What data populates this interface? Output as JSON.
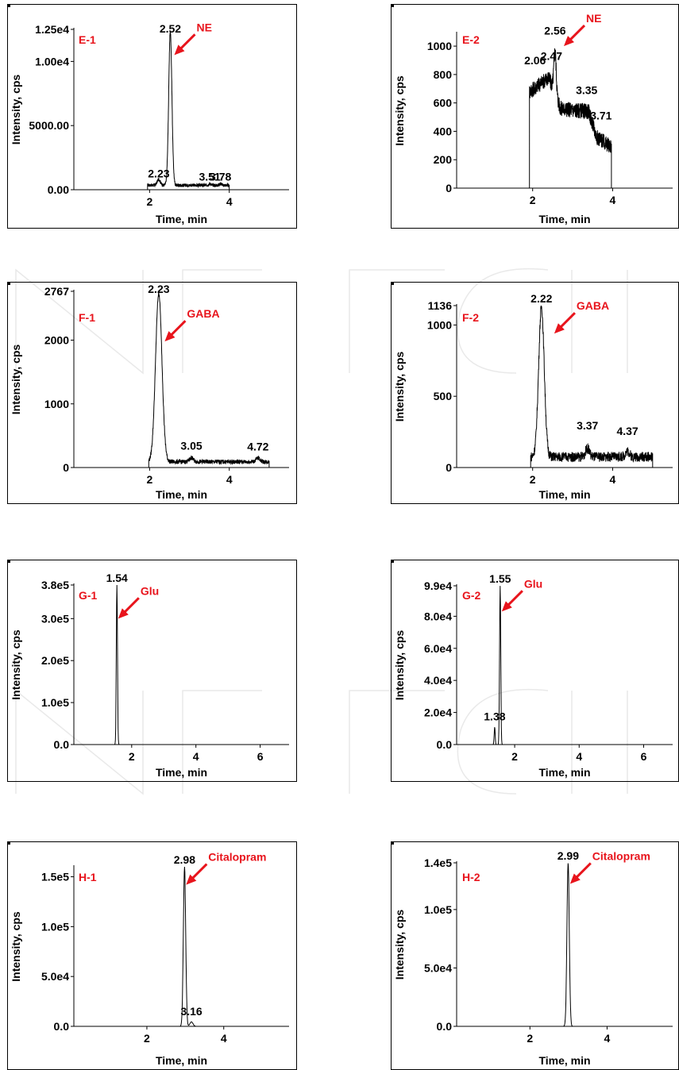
{
  "colors": {
    "trace": "#000000",
    "label": "#e8141c",
    "arrow": "#e8141c",
    "frame": "#000000",
    "watermark": "#e9e9e9"
  },
  "chart_data": [
    {
      "type": "line",
      "id": "E-1",
      "panel_label": "E-1",
      "compound": "NE",
      "xlabel": "Time, min",
      "ylabel": "Intensity, cps",
      "xlim": [
        0.1,
        5.5
      ],
      "ylim": [
        0,
        12500
      ],
      "xticks": [
        {
          "v": 2,
          "label": "2"
        },
        {
          "v": 4,
          "label": "4"
        }
      ],
      "yticks": [
        {
          "v": 0,
          "label": "0.00"
        },
        {
          "v": 5000,
          "label": "5000.00"
        },
        {
          "v": 10000,
          "label": "1.00e4"
        },
        {
          "v": 12500,
          "label": "1.25e4"
        }
      ],
      "trace": {
        "start": 1.95,
        "end": 4.0,
        "baseline": 350,
        "noise": 250,
        "peaks": [
          {
            "x": 2.52,
            "h": 12000,
            "w": 0.04
          },
          {
            "x": 2.23,
            "h": 450,
            "w": 0.04
          },
          {
            "x": 3.51,
            "h": 120,
            "w": 0.03
          },
          {
            "x": 3.78,
            "h": 120,
            "w": 0.03
          }
        ]
      },
      "annotations": [
        {
          "x": 2.52,
          "y": 12000,
          "label": "2.52"
        },
        {
          "x": 2.23,
          "y": 700,
          "label": "2.23"
        },
        {
          "x": 3.51,
          "y": 450,
          "label": "3.51"
        },
        {
          "x": 3.78,
          "y": 450,
          "label": "3.78"
        }
      ],
      "arrow_target": {
        "x": 2.62,
        "y": 10500
      }
    },
    {
      "type": "line",
      "id": "E-2",
      "panel_label": "E-2",
      "compound": "NE",
      "xlabel": "Time, min",
      "ylabel": "Intensity, cps",
      "xlim": [
        0.1,
        5.5
      ],
      "ylim": [
        0,
        1090
      ],
      "xticks": [
        {
          "v": 2,
          "label": "2"
        },
        {
          "v": 4,
          "label": "4"
        }
      ],
      "yticks": [
        {
          "v": 0,
          "label": "0"
        },
        {
          "v": 200,
          "label": "200"
        },
        {
          "v": 400,
          "label": "400"
        },
        {
          "v": 600,
          "label": "600"
        },
        {
          "v": 800,
          "label": "800"
        },
        {
          "v": 1000,
          "label": "1000"
        }
      ],
      "trace": {
        "start": 1.92,
        "end": 3.97,
        "noise": 110,
        "base_segments": [
          {
            "x": 1.93,
            "y": 680
          },
          {
            "x": 2.4,
            "y": 780
          },
          {
            "x": 2.7,
            "y": 560
          },
          {
            "x": 3.4,
            "y": 540
          },
          {
            "x": 3.6,
            "y": 360
          },
          {
            "x": 3.9,
            "y": 300
          }
        ],
        "peaks": [
          {
            "x": 2.56,
            "h": 300,
            "w": 0.03
          }
        ]
      },
      "annotations": [
        {
          "x": 2.56,
          "y": 1060,
          "label": "2.56"
        },
        {
          "x": 2.06,
          "y": 850,
          "label": "2.06"
        },
        {
          "x": 2.47,
          "y": 880,
          "label": "2.47"
        },
        {
          "x": 3.35,
          "y": 640,
          "label": "3.35"
        },
        {
          "x": 3.71,
          "y": 460,
          "label": "3.71"
        }
      ],
      "arrow_target": {
        "x": 2.78,
        "y": 1000
      }
    },
    {
      "type": "line",
      "id": "F-1",
      "panel_label": "F-1",
      "compound": "GABA",
      "xlabel": "Time, min",
      "ylabel": "Intensity, cps",
      "xlim": [
        0.1,
        5.5
      ],
      "ylim": [
        0,
        2767
      ],
      "xticks": [
        {
          "v": 2,
          "label": "2"
        },
        {
          "v": 4,
          "label": "4"
        }
      ],
      "yticks": [
        {
          "v": 0,
          "label": "0"
        },
        {
          "v": 1000,
          "label": "1000"
        },
        {
          "v": 2000,
          "label": "2000"
        },
        {
          "v": 2767,
          "label": "2767"
        }
      ],
      "trace": {
        "start": 1.98,
        "end": 5.0,
        "baseline": 90,
        "noise": 70,
        "peaks": [
          {
            "x": 2.23,
            "h": 2650,
            "w": 0.08
          },
          {
            "x": 3.05,
            "h": 60,
            "w": 0.05
          },
          {
            "x": 4.72,
            "h": 60,
            "w": 0.05
          }
        ]
      },
      "annotations": [
        {
          "x": 2.23,
          "y": 2767,
          "label": "2.23"
        },
        {
          "x": 3.05,
          "y": 230,
          "label": "3.05"
        },
        {
          "x": 4.72,
          "y": 220,
          "label": "4.72"
        }
      ],
      "arrow_target": {
        "x": 2.38,
        "y": 1980
      }
    },
    {
      "type": "line",
      "id": "F-2",
      "panel_label": "F-2",
      "compound": "GABA",
      "xlabel": "Time, min",
      "ylabel": "Intensity, cps",
      "xlim": [
        0.1,
        5.5
      ],
      "ylim": [
        0,
        1136
      ],
      "xticks": [
        {
          "v": 2,
          "label": "2"
        },
        {
          "v": 4,
          "label": "4"
        }
      ],
      "yticks": [
        {
          "v": 0,
          "label": "0"
        },
        {
          "v": 500,
          "label": "500"
        },
        {
          "v": 1000,
          "label": "1000"
        },
        {
          "v": 1136,
          "label": "1136"
        }
      ],
      "trace": {
        "start": 1.95,
        "end": 5.0,
        "baseline": 75,
        "noise": 70,
        "peaks": [
          {
            "x": 2.22,
            "h": 1050,
            "w": 0.07
          },
          {
            "x": 3.37,
            "h": 60,
            "w": 0.05
          },
          {
            "x": 4.37,
            "h": 40,
            "w": 0.05
          }
        ]
      },
      "annotations": [
        {
          "x": 2.22,
          "y": 1136,
          "label": "2.22"
        },
        {
          "x": 3.37,
          "y": 245,
          "label": "3.37"
        },
        {
          "x": 4.37,
          "y": 205,
          "label": "4.37"
        }
      ],
      "arrow_target": {
        "x": 2.54,
        "y": 940
      }
    },
    {
      "type": "line",
      "id": "G-1",
      "panel_label": "G-1",
      "compound": "Glu",
      "xlabel": "Time, min",
      "ylabel": "Intensity, cps",
      "xlim": [
        0.2,
        6.9
      ],
      "ylim": [
        0,
        380000
      ],
      "xticks": [
        {
          "v": 2,
          "label": "2"
        },
        {
          "v": 4,
          "label": "4"
        },
        {
          "v": 6,
          "label": "6"
        }
      ],
      "yticks": [
        {
          "v": 0,
          "label": "0.0"
        },
        {
          "v": 100000,
          "label": "1.0e5"
        },
        {
          "v": 200000,
          "label": "2.0e5"
        },
        {
          "v": 300000,
          "label": "3.0e5"
        },
        {
          "v": 380000,
          "label": "3.8e5"
        }
      ],
      "trace": {
        "start": 0.2,
        "end": 6.9,
        "baseline": 0,
        "noise": 0,
        "peaks": [
          {
            "x": 1.54,
            "h": 380000,
            "w": 0.018
          }
        ]
      },
      "annotations": [
        {
          "x": 1.54,
          "y": 380000,
          "label": "1.54"
        }
      ],
      "arrow_target": {
        "x": 1.58,
        "y": 300000
      }
    },
    {
      "type": "line",
      "id": "G-2",
      "panel_label": "G-2",
      "compound": "Glu",
      "xlabel": "Time, min",
      "ylabel": "Intensity, cps",
      "xlim": [
        0.2,
        6.9
      ],
      "ylim": [
        0,
        99000
      ],
      "xticks": [
        {
          "v": 2,
          "label": "2"
        },
        {
          "v": 4,
          "label": "4"
        },
        {
          "v": 6,
          "label": "6"
        }
      ],
      "yticks": [
        {
          "v": 0,
          "label": "0.0"
        },
        {
          "v": 20000,
          "label": "2.0e4"
        },
        {
          "v": 40000,
          "label": "4.0e4"
        },
        {
          "v": 60000,
          "label": "6.0e4"
        },
        {
          "v": 80000,
          "label": "8.0e4"
        },
        {
          "v": 99000,
          "label": "9.9e4"
        }
      ],
      "trace": {
        "start": 0.2,
        "end": 6.9,
        "baseline": 0,
        "noise": 0,
        "peaks": [
          {
            "x": 1.55,
            "h": 99000,
            "w": 0.018
          },
          {
            "x": 1.38,
            "h": 11000,
            "w": 0.015
          }
        ]
      },
      "annotations": [
        {
          "x": 1.55,
          "y": 99000,
          "label": "1.55"
        },
        {
          "x": 1.38,
          "y": 13000,
          "label": "1.38"
        }
      ],
      "arrow_target": {
        "x": 1.6,
        "y": 83000
      }
    },
    {
      "type": "line",
      "id": "H-1",
      "panel_label": "H-1",
      "compound": "Citalopram",
      "xlabel": "Time, min",
      "ylabel": "Intensity, cps",
      "xlim": [
        0.1,
        5.7
      ],
      "ylim": [
        0,
        160000
      ],
      "xticks": [
        {
          "v": 2,
          "label": "2"
        },
        {
          "v": 4,
          "label": "4"
        }
      ],
      "yticks": [
        {
          "v": 0,
          "label": "0.0"
        },
        {
          "v": 50000,
          "label": "5.0e4"
        },
        {
          "v": 100000,
          "label": "1.0e5"
        },
        {
          "v": 150000,
          "label": "1.5e5"
        }
      ],
      "trace": {
        "start": 0.1,
        "end": 5.7,
        "baseline": 0,
        "noise": 0,
        "peaks": [
          {
            "x": 2.98,
            "h": 160000,
            "w": 0.03
          },
          {
            "x": 3.16,
            "h": 4500,
            "w": 0.04
          }
        ]
      },
      "annotations": [
        {
          "x": 2.98,
          "y": 160000,
          "label": "2.98"
        },
        {
          "x": 3.16,
          "y": 8000,
          "label": "3.16"
        }
      ],
      "arrow_target": {
        "x": 3.02,
        "y": 142000
      }
    },
    {
      "type": "line",
      "id": "H-2",
      "panel_label": "H-2",
      "compound": "Citalopram",
      "xlabel": "Time, min",
      "ylabel": "Intensity, cps",
      "xlim": [
        0.1,
        5.7
      ],
      "ylim": [
        0,
        140000
      ],
      "xticks": [
        {
          "v": 2,
          "label": "2"
        },
        {
          "v": 4,
          "label": "4"
        }
      ],
      "yticks": [
        {
          "v": 0,
          "label": "0.0"
        },
        {
          "v": 50000,
          "label": "5.0e4"
        },
        {
          "v": 100000,
          "label": "1.0e5"
        },
        {
          "v": 140000,
          "label": "1.4e5"
        }
      ],
      "trace": {
        "start": 0.1,
        "end": 5.7,
        "baseline": 0,
        "noise": 0,
        "peaks": [
          {
            "x": 2.99,
            "h": 140000,
            "w": 0.03
          }
        ]
      },
      "annotations": [
        {
          "x": 2.99,
          "y": 140000,
          "label": "2.99"
        }
      ],
      "arrow_target": {
        "x": 3.04,
        "y": 122000
      }
    }
  ]
}
